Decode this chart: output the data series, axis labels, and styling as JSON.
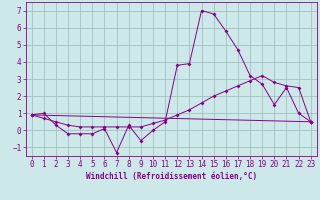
{
  "line1_x": [
    0,
    1,
    2,
    3,
    4,
    5,
    6,
    7,
    8,
    9,
    10,
    11,
    12,
    13,
    14,
    15,
    16,
    17,
    18,
    19,
    20,
    21,
    22,
    23
  ],
  "line1_y": [
    0.9,
    1.0,
    0.3,
    -0.2,
    -0.2,
    -0.2,
    0.1,
    -1.3,
    0.3,
    -0.6,
    0.0,
    0.5,
    3.8,
    3.9,
    7.0,
    6.8,
    5.8,
    4.7,
    3.2,
    2.7,
    1.5,
    2.5,
    1.0,
    0.5
  ],
  "line2_x": [
    0,
    1,
    2,
    3,
    4,
    5,
    6,
    7,
    8,
    9,
    10,
    11,
    12,
    13,
    14,
    15,
    16,
    17,
    18,
    19,
    20,
    21,
    22,
    23
  ],
  "line2_y": [
    0.9,
    0.7,
    0.5,
    0.3,
    0.2,
    0.2,
    0.2,
    0.2,
    0.2,
    0.2,
    0.4,
    0.6,
    0.9,
    1.2,
    1.6,
    2.0,
    2.3,
    2.6,
    2.9,
    3.2,
    2.8,
    2.6,
    2.5,
    0.5
  ],
  "line3_x": [
    0,
    23
  ],
  "line3_y": [
    0.9,
    0.5
  ],
  "bg_color": "#cce8e8",
  "line_color": "#880088",
  "grid_color": "#99bbbb",
  "ylim": [
    -1.5,
    7.5
  ],
  "xlim": [
    -0.5,
    23.5
  ],
  "xlabel": "Windchill (Refroidissement éolien,°C)",
  "yticks": [
    -1,
    0,
    1,
    2,
    3,
    4,
    5,
    6,
    7
  ],
  "xticks": [
    0,
    1,
    2,
    3,
    4,
    5,
    6,
    7,
    8,
    9,
    10,
    11,
    12,
    13,
    14,
    15,
    16,
    17,
    18,
    19,
    20,
    21,
    22,
    23
  ],
  "tick_fontsize": 5.5,
  "xlabel_fontsize": 5.5
}
